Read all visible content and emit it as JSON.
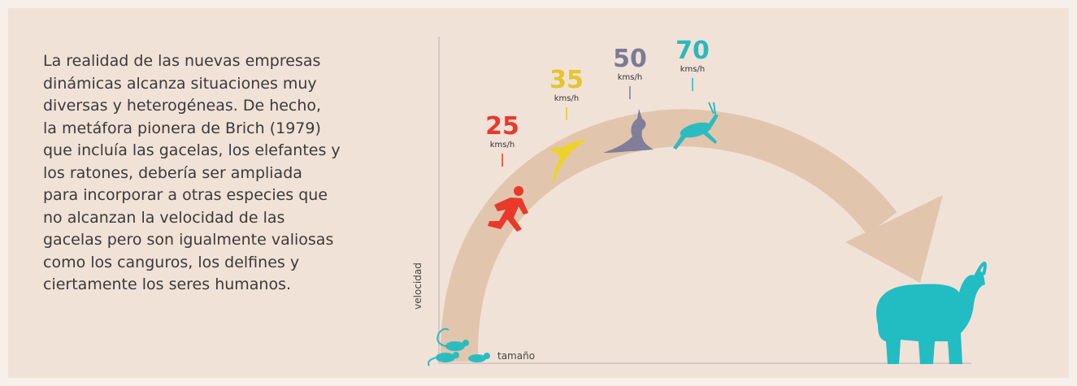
{
  "paragraph": {
    "lines": [
      "La realidad de las nuevas empresas",
      "dinámicas alcanza situaciones muy",
      "diversas y heterogéneas. De hecho,",
      "la metáfora pionera de Brich (1979)",
      "que incluía las gacelas, los elefantes y",
      "los ratones, debería ser ampliada",
      "para incorporar a otras especies que",
      "no alcanzan la velocidad de las",
      "gacelas pero son igualmente valiosas",
      "como los canguros, los delfines y",
      "ciertamente los seres humanos."
    ]
  },
  "axes": {
    "y_label": "velocidad",
    "x_label": "tamaño"
  },
  "speeds": [
    {
      "value": "25",
      "unit": "kms/h"
    },
    {
      "value": "35",
      "unit": "kms/h"
    },
    {
      "value": "50",
      "unit": "kms/h"
    },
    {
      "value": "70",
      "unit": "kms/h"
    }
  ]
}
